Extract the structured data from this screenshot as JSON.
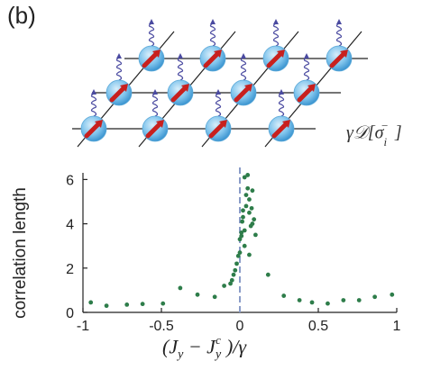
{
  "panel_label": "(b)",
  "lattice": {
    "operator_label": "γ𝒟[σ",
    "operator_sub": "i",
    "operator_sup": "−",
    "operator_close": "]"
  },
  "chart_data": {
    "type": "scatter",
    "ylabel": "correlation length",
    "xlabel": "(J_y − J_y^c)/γ",
    "xlim": [
      -1,
      1
    ],
    "ylim": [
      0,
      6.3
    ],
    "x_ticks": [
      -1,
      -0.5,
      0,
      0.5,
      1
    ],
    "x_tick_labels": [
      "-1",
      "-0.5",
      "0",
      "0.5",
      "1"
    ],
    "y_ticks": [
      0,
      2,
      4,
      6
    ],
    "y_tick_labels": [
      "0",
      "2",
      "4",
      "6"
    ],
    "reference_line": {
      "x": 0,
      "style": "dashed",
      "color": "#8a9cc8"
    },
    "marker_color": "#2e7d4a",
    "points": [
      [
        -0.95,
        0.45
      ],
      [
        -0.85,
        0.3
      ],
      [
        -0.72,
        0.35
      ],
      [
        -0.62,
        0.38
      ],
      [
        -0.49,
        0.4
      ],
      [
        -0.38,
        1.1
      ],
      [
        -0.27,
        0.8
      ],
      [
        -0.16,
        0.7
      ],
      [
        -0.1,
        1.2
      ],
      [
        -0.06,
        1.3
      ],
      [
        -0.05,
        1.45
      ],
      [
        -0.04,
        1.7
      ],
      [
        -0.03,
        1.9
      ],
      [
        -0.02,
        2.2
      ],
      [
        -0.01,
        2.55
      ],
      [
        0.0,
        2.7
      ],
      [
        0.0,
        3.3
      ],
      [
        0.01,
        3.45
      ],
      [
        0.01,
        3.6
      ],
      [
        0.015,
        4.1
      ],
      [
        0.02,
        4.3
      ],
      [
        0.02,
        4.6
      ],
      [
        0.03,
        3.7
      ],
      [
        0.03,
        3.0
      ],
      [
        0.04,
        4.8
      ],
      [
        0.04,
        5.3
      ],
      [
        0.05,
        5.6
      ],
      [
        0.06,
        5.1
      ],
      [
        0.06,
        4.5
      ],
      [
        0.07,
        3.9
      ],
      [
        0.075,
        4.7
      ],
      [
        0.08,
        4.0
      ],
      [
        0.09,
        4.2
      ],
      [
        0.1,
        3.5
      ],
      [
        0.06,
        2.6
      ],
      [
        0.03,
        6.1
      ],
      [
        0.05,
        6.2
      ],
      [
        0.08,
        5.5
      ],
      [
        0.18,
        1.7
      ],
      [
        0.28,
        0.75
      ],
      [
        0.38,
        0.55
      ],
      [
        0.46,
        0.45
      ],
      [
        0.56,
        0.4
      ],
      [
        0.66,
        0.55
      ],
      [
        0.76,
        0.55
      ],
      [
        0.86,
        0.7
      ],
      [
        0.97,
        0.8
      ]
    ]
  }
}
